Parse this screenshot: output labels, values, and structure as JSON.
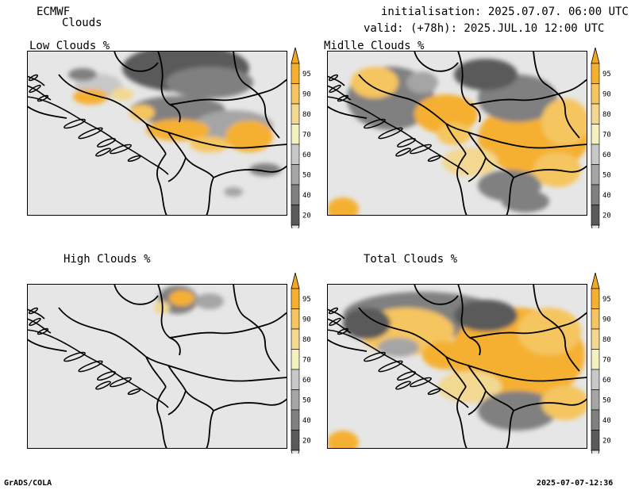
{
  "header": {
    "model": "ECMWF",
    "product": "Clouds",
    "init": "initialisation: 2025.07.07. 06:00 UTC",
    "valid": "valid: (+78h): 2025.JUL.10 12:00 UTC"
  },
  "panels": [
    {
      "title": "Low Clouds %"
    },
    {
      "title": "Midlle Clouds %"
    },
    {
      "title": "High Clouds %"
    },
    {
      "title": "Total Clouds %"
    }
  ],
  "colorbar": {
    "labels": [
      "95",
      "90",
      "80",
      "70",
      "60",
      "50",
      "40",
      "20"
    ],
    "colors": [
      "#f5b030",
      "#f5c560",
      "#f2d890",
      "#f4f1c0",
      "#c8c8c8",
      "#a5a5a5",
      "#808080",
      "#5a5a5a"
    ],
    "under_color": "#e6e6e6",
    "over_color": "#f2a820"
  },
  "palette": {
    "land": "#e6e6e6",
    "border": "#000000"
  },
  "footer": {
    "left": "GrADS/COLA",
    "right": "2025-07-07-12:36"
  }
}
